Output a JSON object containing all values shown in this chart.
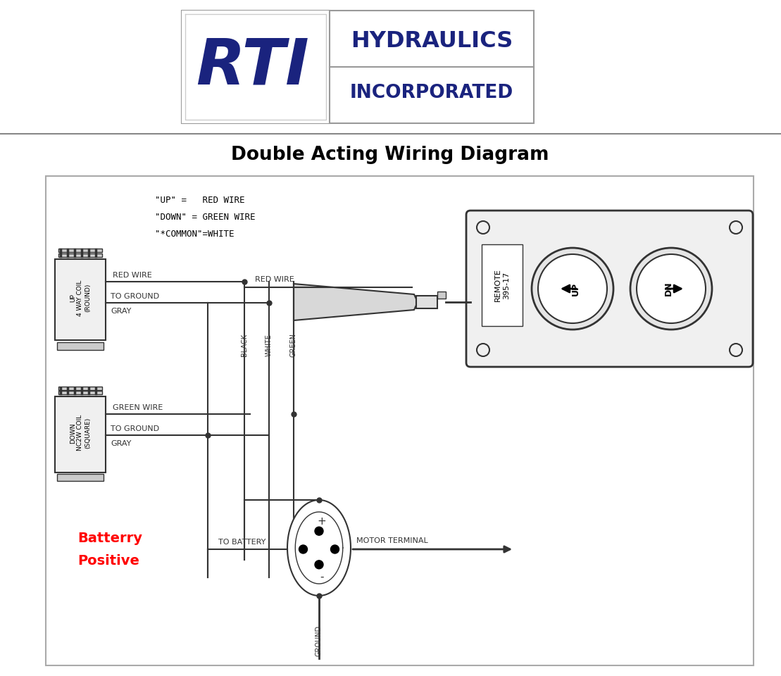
{
  "title": "Double Acting Wiring Diagram",
  "bg_color": "#ffffff",
  "line_color": "#333333",
  "legend_lines": [
    "\"UP\" =   RED WIRE",
    "\"DOWN\" = GREEN WIRE",
    "\"*COMMON\"=WHITE"
  ],
  "up_coil_label": "UP\n4 WAY COIL\n(ROUND)",
  "down_coil_label": "DOWN\nNC2W COIL\n(SQUARE)",
  "remote_label": "REMOTE\n395-17",
  "battery_label_1": "Batterry",
  "battery_label_2": "Positive",
  "motor_terminal_label": "MOTOR TERMINAL",
  "to_battery_label": "TO BATTERY",
  "ground_label": "GROUND",
  "red_wire_label_1": "RED WIRE",
  "red_wire_label_2": "RED WIRE",
  "green_wire_label": "GREEN WIRE",
  "to_ground_label": "TO GROUND",
  "gray_label": "GRAY",
  "black_label": "BLACK",
  "white_label": "WHITE",
  "green_label": "GREEN",
  "up_label": "UP",
  "dn_label": "DN",
  "hydraulics_text": "HYDRAULICS",
  "incorporated_text": "INCORPORATED"
}
